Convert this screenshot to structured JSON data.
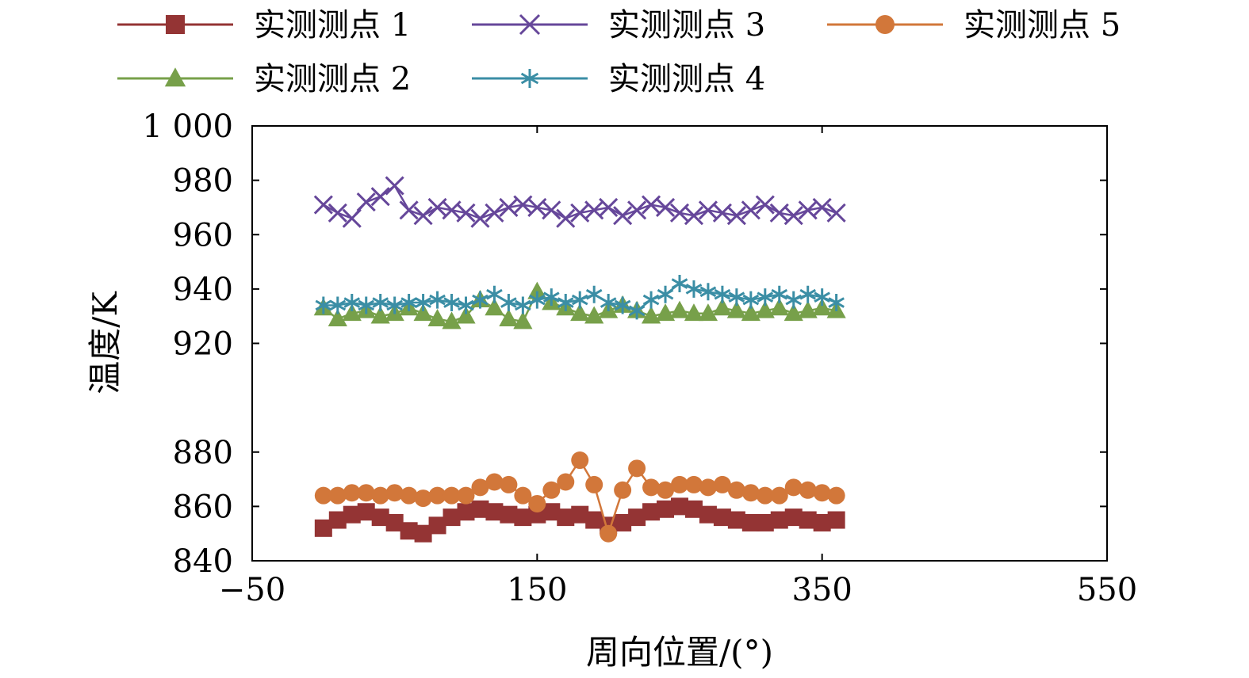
{
  "chart_data": {
    "type": "line",
    "title": "",
    "xlabel": "周向位置/(°)",
    "ylabel": "温度/K",
    "xlim": [
      -50,
      550
    ],
    "ylim": [
      840,
      1000
    ],
    "xticks": [
      -50,
      150,
      350,
      550
    ],
    "xtick_labels": [
      "−50",
      "150",
      "350",
      "550"
    ],
    "yticks": [
      840,
      860,
      880,
      920,
      940,
      960,
      980,
      1000
    ],
    "ytick_labels": [
      "840",
      "860",
      "880",
      "920",
      "940",
      "960",
      "980",
      "1 000"
    ],
    "grid": false,
    "legend_position": "top",
    "series": [
      {
        "name": "实测测点 1",
        "color": "#943434",
        "marker": "square",
        "x": [
          0,
          10,
          20,
          30,
          40,
          50,
          60,
          70,
          80,
          90,
          100,
          110,
          120,
          130,
          140,
          150,
          160,
          170,
          180,
          190,
          200,
          210,
          220,
          230,
          240,
          250,
          260,
          270,
          280,
          290,
          300,
          310,
          320,
          330,
          340,
          350,
          360
        ],
        "y": [
          852,
          855,
          857,
          858,
          856,
          854,
          851,
          850,
          853,
          856,
          858,
          859,
          858,
          857,
          856,
          857,
          858,
          856,
          857,
          855,
          853,
          854,
          856,
          858,
          859,
          860,
          859,
          857,
          856,
          855,
          854,
          854,
          855,
          856,
          855,
          854,
          855
        ]
      },
      {
        "name": "实测测点 2",
        "color": "#77A04A",
        "marker": "triangle",
        "x": [
          0,
          10,
          20,
          30,
          40,
          50,
          60,
          70,
          80,
          90,
          100,
          110,
          120,
          130,
          140,
          150,
          160,
          170,
          180,
          190,
          200,
          210,
          220,
          230,
          240,
          250,
          260,
          270,
          280,
          290,
          300,
          310,
          320,
          330,
          340,
          350,
          360
        ],
        "y": [
          933,
          929,
          931,
          932,
          930,
          931,
          933,
          931,
          929,
          928,
          930,
          936,
          933,
          929,
          928,
          939,
          935,
          933,
          931,
          930,
          932,
          934,
          932,
          930,
          931,
          932,
          931,
          931,
          933,
          932,
          931,
          932,
          933,
          931,
          932,
          933,
          932
        ]
      },
      {
        "name": "实测测点 3",
        "color": "#66479A",
        "marker": "x",
        "x": [
          0,
          10,
          20,
          30,
          40,
          50,
          60,
          70,
          80,
          90,
          100,
          110,
          120,
          130,
          140,
          150,
          160,
          170,
          180,
          190,
          200,
          210,
          220,
          230,
          240,
          250,
          260,
          270,
          280,
          290,
          300,
          310,
          320,
          330,
          340,
          350,
          360
        ],
        "y": [
          971,
          968,
          966,
          972,
          974,
          978,
          969,
          967,
          970,
          969,
          968,
          966,
          968,
          970,
          971,
          970,
          969,
          966,
          968,
          969,
          970,
          967,
          969,
          971,
          970,
          968,
          967,
          969,
          968,
          967,
          969,
          971,
          968,
          967,
          969,
          970,
          968
        ]
      },
      {
        "name": "实测测点 4",
        "color": "#3B8EA5",
        "marker": "asterisk",
        "x": [
          0,
          10,
          20,
          30,
          40,
          50,
          60,
          70,
          80,
          90,
          100,
          110,
          120,
          130,
          140,
          150,
          160,
          170,
          180,
          190,
          200,
          210,
          220,
          230,
          240,
          250,
          260,
          270,
          280,
          290,
          300,
          310,
          320,
          330,
          340,
          350,
          360
        ],
        "y": [
          934,
          934,
          935,
          934,
          935,
          934,
          935,
          935,
          936,
          935,
          934,
          936,
          938,
          935,
          934,
          936,
          937,
          935,
          936,
          938,
          935,
          934,
          932,
          936,
          938,
          942,
          940,
          939,
          938,
          937,
          936,
          937,
          938,
          936,
          938,
          937,
          935
        ]
      },
      {
        "name": "实测测点 5",
        "color": "#D2773A",
        "marker": "circle",
        "x": [
          0,
          10,
          20,
          30,
          40,
          50,
          60,
          70,
          80,
          90,
          100,
          110,
          120,
          130,
          140,
          150,
          160,
          170,
          180,
          190,
          200,
          210,
          220,
          230,
          240,
          250,
          260,
          270,
          280,
          290,
          300,
          310,
          320,
          330,
          340,
          350,
          360
        ],
        "y": [
          864,
          864,
          865,
          865,
          864,
          865,
          864,
          863,
          864,
          864,
          864,
          867,
          869,
          868,
          864,
          861,
          866,
          869,
          877,
          868,
          850,
          866,
          874,
          867,
          866,
          868,
          868,
          867,
          868,
          866,
          865,
          864,
          864,
          867,
          866,
          865,
          864
        ]
      }
    ]
  }
}
